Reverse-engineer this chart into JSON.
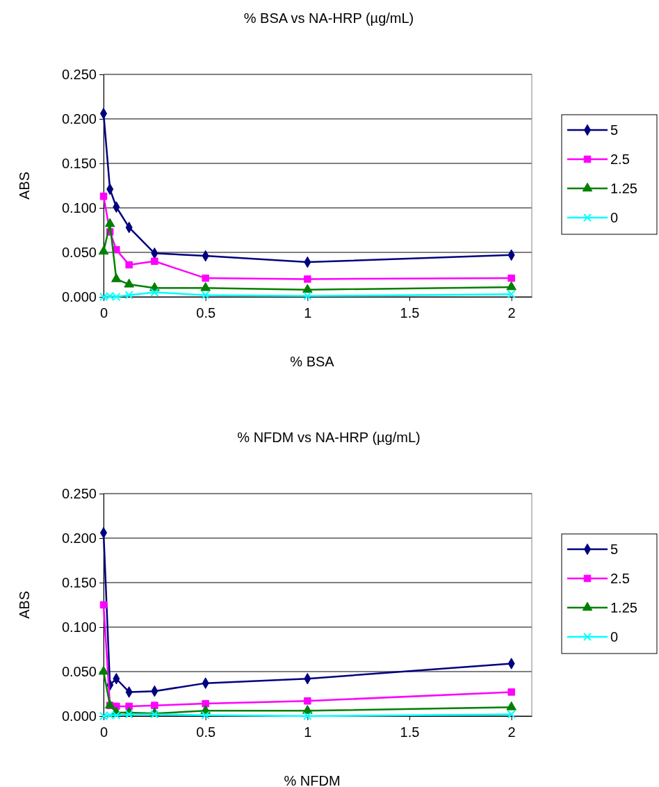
{
  "chart_data": [
    {
      "type": "line",
      "title": "% BSA vs NA-HRP (µg/mL)",
      "xlabel": "% BSA",
      "ylabel": "ABS",
      "x": [
        0,
        0.03125,
        0.0625,
        0.125,
        0.25,
        0.5,
        1,
        2
      ],
      "series": [
        {
          "name": "5",
          "color": "#000080",
          "marker": "diamond",
          "values": [
            0.206,
            0.121,
            0.101,
            0.078,
            0.049,
            0.046,
            0.039,
            0.047
          ]
        },
        {
          "name": "2.5",
          "color": "#ff00ff",
          "marker": "square",
          "values": [
            0.113,
            0.073,
            0.053,
            0.036,
            0.04,
            0.021,
            0.02,
            0.021
          ]
        },
        {
          "name": "1.25",
          "color": "#008000",
          "marker": "triangle",
          "values": [
            0.051,
            0.082,
            0.02,
            0.014,
            0.01,
            0.01,
            0.008,
            0.011
          ]
        },
        {
          "name": "0",
          "color": "#00ffff",
          "marker": "cross",
          "values": [
            0.0,
            0.001,
            0.0,
            0.002,
            0.005,
            0.002,
            0.001,
            0.003
          ]
        }
      ],
      "xlim": [
        0,
        2.1
      ],
      "xticks": [
        0,
        0.5,
        1,
        1.5,
        2
      ],
      "ylim": [
        0,
        0.25
      ],
      "yticks": [
        {
          "value": 0,
          "label": "0.000"
        },
        {
          "value": 0.05,
          "label": "0.050"
        },
        {
          "value": 0.1,
          "label": "0.100"
        },
        {
          "value": 0.15,
          "label": "0.150"
        },
        {
          "value": 0.2,
          "label": "0.200"
        },
        {
          "value": 0.25,
          "label": "0.250"
        }
      ],
      "grid": "y",
      "legend": "right",
      "line_style": "solid"
    },
    {
      "type": "line",
      "title": "% NFDM vs NA-HRP (µg/mL)",
      "xlabel": "% NFDM",
      "ylabel": "ABS",
      "x": [
        0,
        0.03125,
        0.0625,
        0.125,
        0.25,
        0.5,
        1,
        2
      ],
      "series": [
        {
          "name": "5",
          "color": "#000080",
          "marker": "diamond",
          "values": [
            0.206,
            0.035,
            0.042,
            0.027,
            0.028,
            0.037,
            0.042,
            0.059
          ]
        },
        {
          "name": "2.5",
          "color": "#ff00ff",
          "marker": "square",
          "values": [
            0.125,
            0.012,
            0.011,
            0.011,
            0.012,
            0.014,
            0.017,
            0.027
          ]
        },
        {
          "name": "1.25",
          "color": "#008000",
          "marker": "triangle",
          "values": [
            0.05,
            0.012,
            0.004,
            0.004,
            0.003,
            0.006,
            0.006,
            0.01
          ]
        },
        {
          "name": "0",
          "color": "#00ffff",
          "marker": "cross",
          "values": [
            0.0,
            0.001,
            0.001,
            0.002,
            0.002,
            0.001,
            0.0,
            0.002
          ]
        }
      ],
      "xlim": [
        0,
        2.1
      ],
      "xticks": [
        0,
        0.5,
        1,
        1.5,
        2
      ],
      "ylim": [
        0,
        0.25
      ],
      "yticks": [
        {
          "value": 0,
          "label": "0.000"
        },
        {
          "value": 0.05,
          "label": "0.050"
        },
        {
          "value": 0.1,
          "label": "0.100"
        },
        {
          "value": 0.15,
          "label": "0.150"
        },
        {
          "value": 0.2,
          "label": "0.200"
        },
        {
          "value": 0.25,
          "label": "0.250"
        }
      ],
      "grid": "y",
      "legend": "right",
      "line_style": "solid"
    }
  ]
}
